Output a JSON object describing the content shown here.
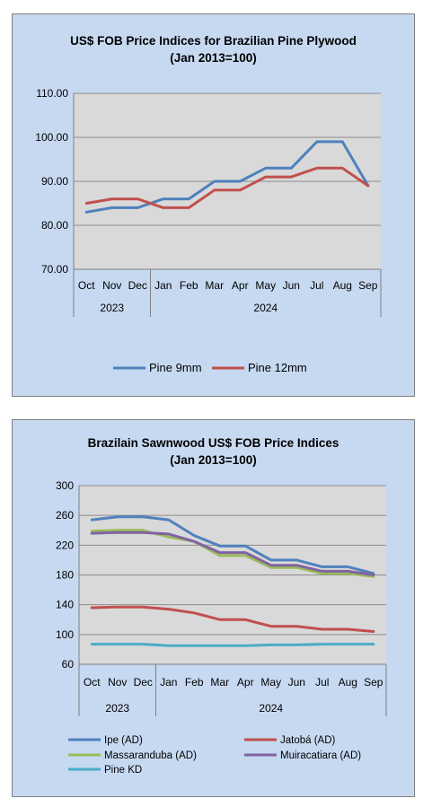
{
  "chart_data": [
    {
      "type": "line",
      "title": "US$ FOB Price Indices for Brazilian  Pine Plywood",
      "subtitle": "(Jan 2013=100)",
      "categories": [
        "Oct",
        "Nov",
        "Dec",
        "Jan",
        "Feb",
        "Mar",
        "Apr",
        "May",
        "Jun",
        "Jul",
        "Aug",
        "Sep"
      ],
      "years": [
        {
          "label": "2023",
          "span": 3
        },
        {
          "label": "2024",
          "span": 9
        }
      ],
      "ylim": [
        70,
        110
      ],
      "yticks": [
        70,
        80,
        90,
        100,
        110
      ],
      "ytick_labels": [
        "70.00",
        "80.00",
        "90.00",
        "100.00",
        "110.00"
      ],
      "grid": true,
      "legend": "bottom",
      "series": [
        {
          "name": "Pine 9mm",
          "color": "#4f81bd",
          "values": [
            83,
            84,
            84,
            86,
            86,
            90,
            90,
            93,
            93,
            99,
            99,
            89
          ]
        },
        {
          "name": "Pine 12mm",
          "color": "#c0504d",
          "values": [
            85,
            86,
            86,
            84,
            84,
            88,
            88,
            91,
            91,
            93,
            93,
            89
          ]
        }
      ]
    },
    {
      "type": "line",
      "title": "Brazilain Sawnwood US$ FOB Price Indices",
      "subtitle": "(Jan 2013=100)",
      "categories": [
        "Oct",
        "Nov",
        "Dec",
        "Jan",
        "Feb",
        "Mar",
        "Apr",
        "May",
        "Jun",
        "Jul",
        "Aug",
        "Sep"
      ],
      "years": [
        {
          "label": "2023",
          "span": 3
        },
        {
          "label": "2024",
          "span": 9
        }
      ],
      "ylim": [
        60,
        300
      ],
      "yticks": [
        60,
        100,
        140,
        180,
        220,
        260,
        300
      ],
      "ytick_labels": [
        "60",
        "100",
        "140",
        "180",
        "220",
        "260",
        "300"
      ],
      "grid": true,
      "legend": "bottom",
      "series": [
        {
          "name": "Ipe (AD)",
          "color": "#4f81bd",
          "values": [
            254,
            258,
            258,
            254,
            233,
            219,
            219,
            200,
            200,
            191,
            191,
            182
          ]
        },
        {
          "name": "Jatobá (AD)",
          "color": "#c0504d",
          "values": [
            136,
            137,
            137,
            134,
            129,
            120,
            120,
            111,
            111,
            107,
            107,
            104
          ]
        },
        {
          "name": "Massaranduba (AD)",
          "color": "#9bbb59",
          "values": [
            239,
            240,
            240,
            231,
            225,
            206,
            206,
            190,
            190,
            182,
            182,
            178
          ]
        },
        {
          "name": "Muiracatiara (AD)",
          "color": "#8064a2",
          "values": [
            236,
            237,
            237,
            235,
            225,
            210,
            210,
            193,
            193,
            185,
            185,
            180
          ]
        },
        {
          "name": "Pine KD",
          "color": "#4bacc6",
          "values": [
            87,
            87,
            87,
            85,
            85,
            85,
            85,
            86,
            86,
            87,
            87,
            87
          ]
        }
      ]
    }
  ]
}
